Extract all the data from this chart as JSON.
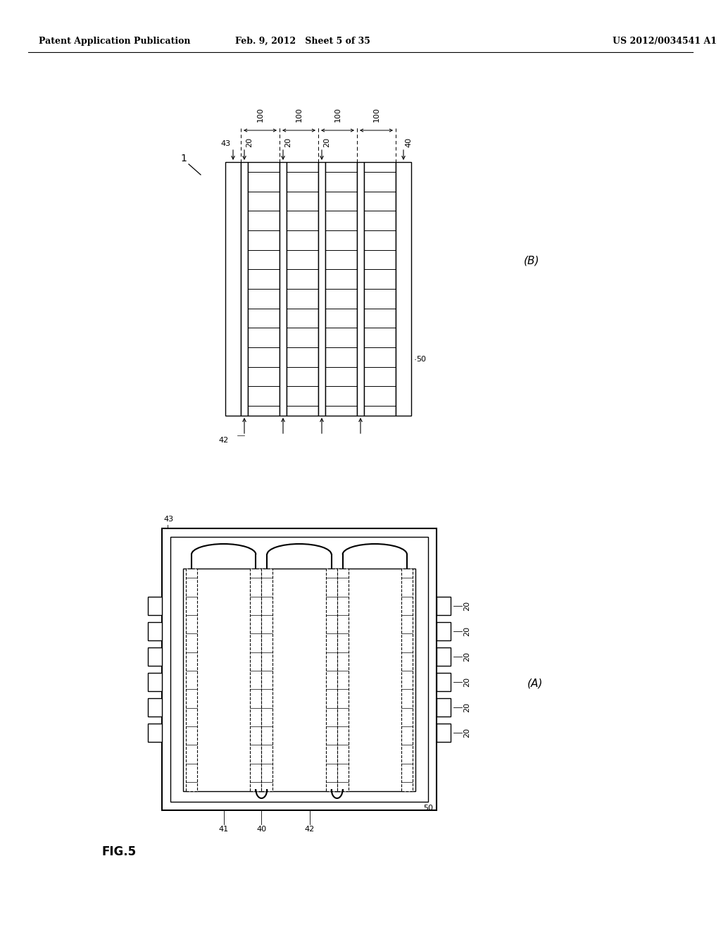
{
  "bg_color": "#ffffff",
  "header_left": "Patent Application Publication",
  "header_mid": "Feb. 9, 2012   Sheet 5 of 35",
  "header_right": "US 2012/0034541 A1",
  "fig_label": "FIG.5",
  "diagram_B_label": "(B)",
  "diagram_A_label": "(A)",
  "label_1": "1",
  "label_43_B": "43",
  "label_20_B": [
    "20",
    "20",
    "20"
  ],
  "label_40_B": "40",
  "label_42_B": "42",
  "label_50_B": "50",
  "labels_100": [
    "100",
    "100",
    "100",
    "100"
  ],
  "label_43_A": "43",
  "label_20_A": [
    "20",
    "20",
    "20",
    "20",
    "20",
    "20"
  ],
  "label_50_A": "50",
  "label_41_A": "41",
  "label_40_A": "40",
  "label_42_A": "42"
}
